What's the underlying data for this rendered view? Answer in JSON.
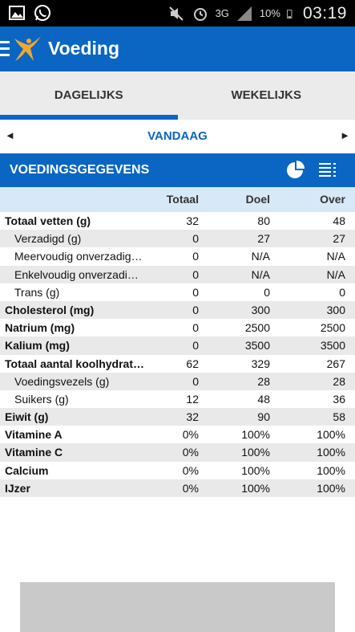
{
  "status_bar": {
    "network": "3G",
    "battery": "10%",
    "time": "03:19"
  },
  "app_bar": {
    "title": "Voeding"
  },
  "tabs": [
    {
      "label": "DAGELIJKS",
      "active": true
    },
    {
      "label": "WEKELIJKS",
      "active": false
    }
  ],
  "date_nav": {
    "prev": "◄",
    "label": "VANDAAG",
    "next": "►"
  },
  "section": {
    "title": "VOEDINGSGEGEVENS"
  },
  "table": {
    "headers": {
      "total": "Totaal",
      "goal": "Doel",
      "over": "Over"
    },
    "rows": [
      {
        "name": "Totaal vetten (g)",
        "total": "32",
        "goal": "80",
        "over": "48"
      },
      {
        "name": "Verzadigd (g)",
        "total": "0",
        "goal": "27",
        "over": "27"
      },
      {
        "name": "Meervoudig onverzadigd (g)",
        "total": "0",
        "goal": "N/A",
        "over": "N/A"
      },
      {
        "name": "Enkelvoudig onverzadigd (g)",
        "total": "0",
        "goal": "N/A",
        "over": "N/A"
      },
      {
        "name": "Trans (g)",
        "total": "0",
        "goal": "0",
        "over": "0"
      },
      {
        "name": "Cholesterol (mg)",
        "total": "0",
        "goal": "300",
        "over": "300"
      },
      {
        "name": "Natrium (mg)",
        "total": "0",
        "goal": "2500",
        "over": "2500"
      },
      {
        "name": "Kalium (mg)",
        "total": "0",
        "goal": "3500",
        "over": "3500"
      },
      {
        "name": "Totaal aantal koolhydraten (g)",
        "total": "62",
        "goal": "329",
        "over": "267"
      },
      {
        "name": "Voedingsvezels (g)",
        "total": "0",
        "goal": "28",
        "over": "28"
      },
      {
        "name": "Suikers (g)",
        "total": "12",
        "goal": "48",
        "over": "36"
      },
      {
        "name": "Eiwit (g)",
        "total": "32",
        "goal": "90",
        "over": "58"
      },
      {
        "name": "Vitamine A",
        "total": "0%",
        "goal": "100%",
        "over": "100%"
      },
      {
        "name": "Vitamine C",
        "total": "0%",
        "goal": "100%",
        "over": "100%"
      },
      {
        "name": "Calcium",
        "total": "0%",
        "goal": "100%",
        "over": "100%"
      },
      {
        "name": "IJzer",
        "total": "0%",
        "goal": "100%",
        "over": "100%"
      }
    ]
  },
  "colors": {
    "accent": "#0a66c2",
    "header_row": "#d7e8f7",
    "shaded_row": "#e9e9e9"
  }
}
